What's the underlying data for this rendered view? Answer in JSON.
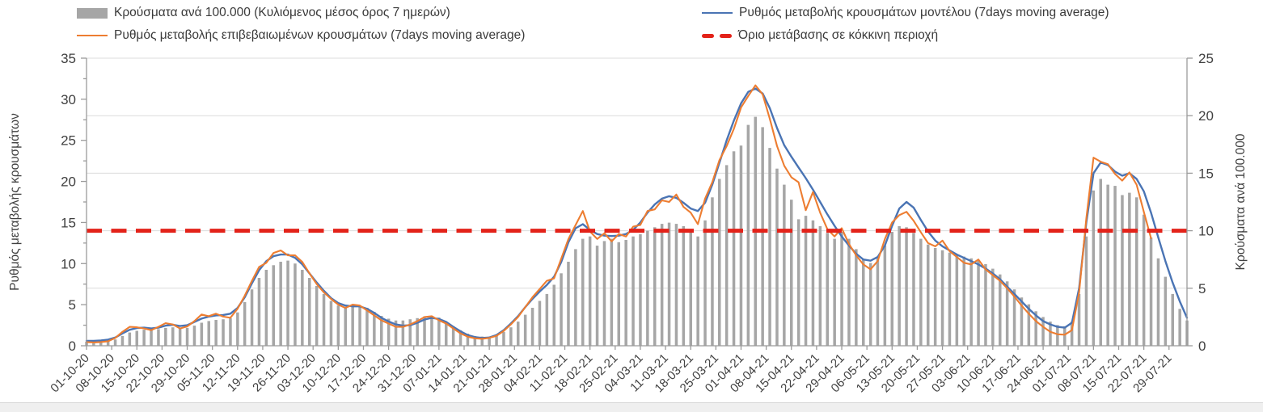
{
  "colors": {
    "bars": "#a6a6a6",
    "model_line": "#4a74b4",
    "confirmed_line": "#ed7d31",
    "threshold": "#e32219",
    "gridline": "#dcdcdc",
    "axis_line": "#9b9b9b",
    "tick_text": "#404040"
  },
  "legend": {
    "bars_label": "Κρούσματα ανά 100.000 (Κυλιόμενος μέσος όρος 7 ημερών)",
    "confirmed_label": "Ρυθμός μεταβολής επιβεβαιωμένων κρουσμάτων (7days moving average)",
    "model_label": "Ρυθμός μεταβολής κρουσμάτων μοντέλου (7days moving average)",
    "threshold_label": "Όριο μετάβασης σε κόκκινη περιοχή"
  },
  "y_axis_left": {
    "title": "Ρυθμός μεταβολής κρουσμάτων",
    "ticks": [
      0,
      5,
      10,
      15,
      20,
      25,
      30,
      35
    ],
    "max": 35
  },
  "y_axis_right": {
    "title": "Κρούσματα ανά 100.000",
    "ticks": [
      0,
      5,
      10,
      15,
      20,
      25
    ],
    "max": 25
  },
  "x_axis": {
    "tick_labels": [
      "01-10-20",
      "08-10-20",
      "15-10-20",
      "22-10-20",
      "29-10-20",
      "05-11-20",
      "12-11-20",
      "19-11-20",
      "26-11-20",
      "03-12-20",
      "10-12-20",
      "17-12-20",
      "24-12-20",
      "31-12-20",
      "07-01-21",
      "14-01-21",
      "21-01-21",
      "28-01-21",
      "04-02-21",
      "11-02-21",
      "18-02-21",
      "25-02-21",
      "04-03-21",
      "11-03-21",
      "18-03-21",
      "25-03-21",
      "01-04-21",
      "08-04-21",
      "15-04-21",
      "22-04-21",
      "29-04-21",
      "06-05-21",
      "13-05-21",
      "20-05-21",
      "27-05-21",
      "03-06-21",
      "10-06-21",
      "17-06-21",
      "24-06-21",
      "01-07-21",
      "08-07-21",
      "15-07-21",
      "22-07-21",
      "29-07-21"
    ]
  },
  "chart_data": {
    "type": "combo-bar-line",
    "x_start_date": "01-10-20",
    "x_end_date": "03-08-21",
    "sample_interval_days": 2,
    "total_days": 306,
    "axis_left_range": [
      0,
      35
    ],
    "axis_right_range": [
      0,
      25
    ],
    "grid": "horizontal",
    "legend_position": "top",
    "threshold": {
      "name": "Όριο μετάβασης σε κόκκινη περιοχή",
      "axis": "left",
      "value": 14,
      "value_right_axis": 10
    },
    "series": [
      {
        "name": "Κρούσματα ανά 100.000 (Κυλιόμενος μέσος όρος 7 ημερών)",
        "type": "bar",
        "axis": "right",
        "values": [
          0.35,
          0.35,
          0.35,
          0.4,
          0.55,
          0.85,
          1.15,
          1.3,
          1.4,
          1.4,
          1.45,
          1.55,
          1.6,
          1.5,
          1.55,
          1.75,
          2.0,
          2.15,
          2.25,
          2.3,
          2.4,
          2.9,
          3.8,
          4.9,
          5.9,
          6.6,
          7.0,
          7.3,
          7.4,
          7.15,
          6.6,
          5.9,
          5.2,
          4.5,
          3.9,
          3.5,
          3.4,
          3.5,
          3.5,
          3.3,
          2.95,
          2.6,
          2.35,
          2.2,
          2.2,
          2.3,
          2.4,
          2.55,
          2.6,
          2.45,
          2.1,
          1.7,
          1.35,
          1.05,
          0.85,
          0.8,
          0.8,
          0.9,
          1.2,
          1.6,
          2.1,
          2.7,
          3.3,
          3.9,
          4.5,
          5.3,
          6.3,
          7.3,
          8.4,
          9.3,
          9.5,
          8.7,
          9.1,
          9.3,
          9.0,
          9.2,
          9.5,
          9.7,
          10.0,
          10.3,
          10.6,
          10.7,
          10.6,
          10.4,
          10.0,
          9.5,
          10.9,
          12.9,
          14.5,
          15.7,
          16.9,
          17.4,
          19.2,
          19.9,
          19.0,
          17.2,
          15.4,
          14.0,
          12.7,
          11.0,
          11.3,
          10.9,
          10.4,
          9.8,
          9.3,
          9.9,
          9.3,
          8.4,
          7.5,
          7.2,
          7.7,
          8.7,
          9.9,
          10.4,
          10.3,
          9.8,
          9.3,
          8.8,
          8.5,
          8.3,
          8.1,
          7.9,
          7.75,
          7.6,
          7.4,
          7.1,
          6.7,
          6.2,
          5.6,
          4.9,
          4.2,
          3.6,
          3.0,
          2.5,
          2.1,
          1.8,
          1.7,
          2.1,
          4.5,
          9.5,
          13.5,
          14.5,
          14.0,
          13.9,
          13.1,
          13.3,
          12.9,
          11.4,
          9.4,
          7.6,
          6.0,
          4.5,
          3.2,
          2.2
        ]
      },
      {
        "name": "Ρυθμός μεταβολής κρουσμάτων μοντέλου (7days moving average)",
        "type": "line",
        "axis": "left",
        "values": [
          0.6,
          0.6,
          0.65,
          0.75,
          1.0,
          1.5,
          1.95,
          2.15,
          2.2,
          2.1,
          2.2,
          2.45,
          2.55,
          2.4,
          2.5,
          2.9,
          3.3,
          3.55,
          3.7,
          3.75,
          3.9,
          4.6,
          5.9,
          7.6,
          9.2,
          10.3,
          10.9,
          11.1,
          11.1,
          10.7,
          9.9,
          8.8,
          7.7,
          6.7,
          5.8,
          5.2,
          4.9,
          4.8,
          4.8,
          4.5,
          4.0,
          3.4,
          2.95,
          2.6,
          2.45,
          2.5,
          2.8,
          3.2,
          3.4,
          3.25,
          2.9,
          2.3,
          1.75,
          1.3,
          1.05,
          0.95,
          1.0,
          1.3,
          1.9,
          2.7,
          3.6,
          4.7,
          5.7,
          6.6,
          7.4,
          8.4,
          10.2,
          12.6,
          14.3,
          14.8,
          14.1,
          13.6,
          13.4,
          13.35,
          13.4,
          13.6,
          14.1,
          15.0,
          16.2,
          17.2,
          17.9,
          18.2,
          18.0,
          17.4,
          16.7,
          16.4,
          17.4,
          19.6,
          22.3,
          25.0,
          27.4,
          29.5,
          30.9,
          31.3,
          30.7,
          28.9,
          26.5,
          24.4,
          23.0,
          21.7,
          20.4,
          19.0,
          17.5,
          16.0,
          14.6,
          13.3,
          12.2,
          11.2,
          10.5,
          10.35,
          10.8,
          12.2,
          14.6,
          16.7,
          17.5,
          16.8,
          15.3,
          13.9,
          12.8,
          12.1,
          11.6,
          11.1,
          10.7,
          10.3,
          9.9,
          9.4,
          8.8,
          8.1,
          7.2,
          6.3,
          5.4,
          4.5,
          3.7,
          3.0,
          2.6,
          2.3,
          2.2,
          2.8,
          7.0,
          15.0,
          21.0,
          22.3,
          22.0,
          21.2,
          20.7,
          21.0,
          20.3,
          18.8,
          16.2,
          13.2,
          10.3,
          7.7,
          5.4,
          3.4
        ]
      },
      {
        "name": "Ρυθμός μεταβολής επιβεβαιωμένων κρουσμάτων (7days moving average)",
        "type": "line",
        "axis": "left",
        "values": [
          0.45,
          0.4,
          0.45,
          0.55,
          0.95,
          1.7,
          2.3,
          2.25,
          2.1,
          1.9,
          2.3,
          2.75,
          2.6,
          2.1,
          2.35,
          3.0,
          3.8,
          3.6,
          3.9,
          3.55,
          3.4,
          4.5,
          6.1,
          7.9,
          9.6,
          10.1,
          11.3,
          11.6,
          11.0,
          11.0,
          10.2,
          8.8,
          7.5,
          6.5,
          5.7,
          5.0,
          4.6,
          5.0,
          4.9,
          4.3,
          3.7,
          3.1,
          2.7,
          2.3,
          2.3,
          2.6,
          3.0,
          3.5,
          3.6,
          3.1,
          2.7,
          2.1,
          1.5,
          1.1,
          0.9,
          0.85,
          0.95,
          1.2,
          1.8,
          2.6,
          3.5,
          4.7,
          5.9,
          6.9,
          7.9,
          8.2,
          10.6,
          13.0,
          14.7,
          16.4,
          13.9,
          13.0,
          13.7,
          12.7,
          13.6,
          13.3,
          14.5,
          14.7,
          16.4,
          16.6,
          17.7,
          17.5,
          18.4,
          16.9,
          16.2,
          14.8,
          17.9,
          19.9,
          22.6,
          24.3,
          26.4,
          29.0,
          30.4,
          31.7,
          30.6,
          27.6,
          24.3,
          21.9,
          20.5,
          19.9,
          16.5,
          18.7,
          16.2,
          14.2,
          13.3,
          14.3,
          12.4,
          11.0,
          9.9,
          9.3,
          10.3,
          13.0,
          15.0,
          15.9,
          16.3,
          15.2,
          13.8,
          12.5,
          12.1,
          12.8,
          11.5,
          10.8,
          10.1,
          9.9,
          10.5,
          9.3,
          8.6,
          7.9,
          7.0,
          6.0,
          4.9,
          3.9,
          3.0,
          2.3,
          1.7,
          1.4,
          1.35,
          1.9,
          6.5,
          15.5,
          22.9,
          22.4,
          22.1,
          20.9,
          20.1,
          21.1,
          19.6,
          16.3,
          13.1,
          null,
          null,
          null,
          null,
          null
        ]
      }
    ]
  }
}
